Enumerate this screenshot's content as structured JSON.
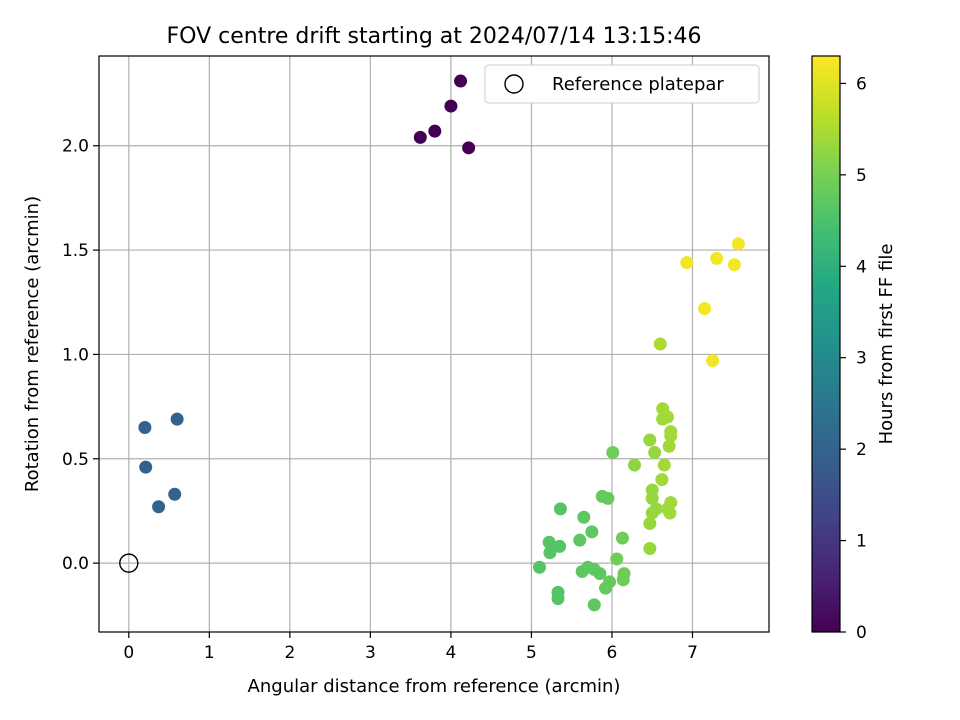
{
  "chart_data": {
    "type": "scatter",
    "title": "FOV centre drift starting at 2024/07/14 13:15:46",
    "xlabel": "Angular distance from reference (arcmin)",
    "ylabel": "Rotation from reference (arcmin)",
    "xlim": [
      -0.37,
      7.95
    ],
    "ylim": [
      -0.33,
      2.43
    ],
    "xticks": [
      "0",
      "1",
      "2",
      "3",
      "4",
      "5",
      "6",
      "7"
    ],
    "yticks": [
      "0.0",
      "0.5",
      "1.0",
      "1.5",
      "2.0"
    ],
    "grid": true,
    "legend": {
      "position": "top-right",
      "entries": [
        "Reference platepar"
      ]
    },
    "reference_point": {
      "x": 0,
      "y": 0,
      "label": "Reference platepar"
    },
    "colorbar": {
      "label": "Hours from first FF file",
      "range": [
        0,
        6.3
      ],
      "ticks": [
        "0",
        "1",
        "2",
        "3",
        "4",
        "5",
        "6"
      ],
      "colormap": "viridis"
    },
    "points": [
      {
        "x": 4.12,
        "y": 2.31,
        "c": 0.0
      },
      {
        "x": 4.0,
        "y": 2.19,
        "c": 0.0
      },
      {
        "x": 3.8,
        "y": 2.07,
        "c": 0.0
      },
      {
        "x": 3.62,
        "y": 2.04,
        "c": 0.0
      },
      {
        "x": 4.22,
        "y": 1.99,
        "c": 0.0
      },
      {
        "x": 0.6,
        "y": 0.69,
        "c": 2.0
      },
      {
        "x": 0.2,
        "y": 0.65,
        "c": 2.0
      },
      {
        "x": 0.21,
        "y": 0.46,
        "c": 2.0
      },
      {
        "x": 0.57,
        "y": 0.33,
        "c": 2.0
      },
      {
        "x": 0.37,
        "y": 0.27,
        "c": 2.0
      },
      {
        "x": 5.1,
        "y": -0.02,
        "c": 4.6
      },
      {
        "x": 5.22,
        "y": 0.1,
        "c": 4.6
      },
      {
        "x": 5.23,
        "y": 0.05,
        "c": 4.6
      },
      {
        "x": 5.35,
        "y": 0.08,
        "c": 4.6
      },
      {
        "x": 5.36,
        "y": 0.26,
        "c": 4.6
      },
      {
        "x": 5.33,
        "y": -0.14,
        "c": 4.6
      },
      {
        "x": 5.33,
        "y": -0.17,
        "c": 4.6
      },
      {
        "x": 5.6,
        "y": 0.11,
        "c": 4.7
      },
      {
        "x": 5.65,
        "y": 0.22,
        "c": 4.7
      },
      {
        "x": 5.63,
        "y": -0.04,
        "c": 4.7
      },
      {
        "x": 5.7,
        "y": -0.02,
        "c": 4.7
      },
      {
        "x": 5.75,
        "y": 0.15,
        "c": 4.7
      },
      {
        "x": 5.78,
        "y": -0.03,
        "c": 4.7
      },
      {
        "x": 5.85,
        "y": -0.05,
        "c": 4.7
      },
      {
        "x": 5.78,
        "y": -0.2,
        "c": 4.7
      },
      {
        "x": 5.88,
        "y": 0.32,
        "c": 4.8
      },
      {
        "x": 5.95,
        "y": 0.31,
        "c": 4.8
      },
      {
        "x": 5.92,
        "y": -0.12,
        "c": 4.8
      },
      {
        "x": 5.97,
        "y": -0.09,
        "c": 4.8
      },
      {
        "x": 6.01,
        "y": 0.53,
        "c": 4.9
      },
      {
        "x": 6.06,
        "y": 0.02,
        "c": 4.9
      },
      {
        "x": 6.13,
        "y": 0.12,
        "c": 4.9
      },
      {
        "x": 6.15,
        "y": -0.05,
        "c": 4.9
      },
      {
        "x": 6.14,
        "y": -0.08,
        "c": 4.9
      },
      {
        "x": 6.28,
        "y": 0.47,
        "c": 5.2
      },
      {
        "x": 6.47,
        "y": 0.59,
        "c": 5.3
      },
      {
        "x": 6.47,
        "y": 0.07,
        "c": 5.3
      },
      {
        "x": 6.47,
        "y": 0.19,
        "c": 5.3
      },
      {
        "x": 6.5,
        "y": 0.24,
        "c": 5.3
      },
      {
        "x": 6.5,
        "y": 0.31,
        "c": 5.3
      },
      {
        "x": 6.5,
        "y": 0.35,
        "c": 5.3
      },
      {
        "x": 6.55,
        "y": 0.26,
        "c": 5.3
      },
      {
        "x": 6.53,
        "y": 0.53,
        "c": 5.3
      },
      {
        "x": 6.62,
        "y": 0.4,
        "c": 5.4
      },
      {
        "x": 6.65,
        "y": 0.47,
        "c": 5.4
      },
      {
        "x": 6.63,
        "y": 0.69,
        "c": 5.4
      },
      {
        "x": 6.63,
        "y": 0.74,
        "c": 5.4
      },
      {
        "x": 6.69,
        "y": 0.7,
        "c": 5.4
      },
      {
        "x": 6.71,
        "y": 0.56,
        "c": 5.4
      },
      {
        "x": 6.73,
        "y": 0.63,
        "c": 5.4
      },
      {
        "x": 6.73,
        "y": 0.61,
        "c": 5.4
      },
      {
        "x": 6.69,
        "y": 0.26,
        "c": 5.4
      },
      {
        "x": 6.72,
        "y": 0.24,
        "c": 5.4
      },
      {
        "x": 6.73,
        "y": 0.29,
        "c": 5.4
      },
      {
        "x": 6.6,
        "y": 1.05,
        "c": 5.5
      },
      {
        "x": 6.93,
        "y": 1.44,
        "c": 6.2
      },
      {
        "x": 7.15,
        "y": 1.22,
        "c": 6.2
      },
      {
        "x": 7.25,
        "y": 0.97,
        "c": 6.2
      },
      {
        "x": 7.3,
        "y": 1.46,
        "c": 6.2
      },
      {
        "x": 7.52,
        "y": 1.43,
        "c": 6.2
      },
      {
        "x": 7.57,
        "y": 1.53,
        "c": 6.2
      }
    ]
  }
}
